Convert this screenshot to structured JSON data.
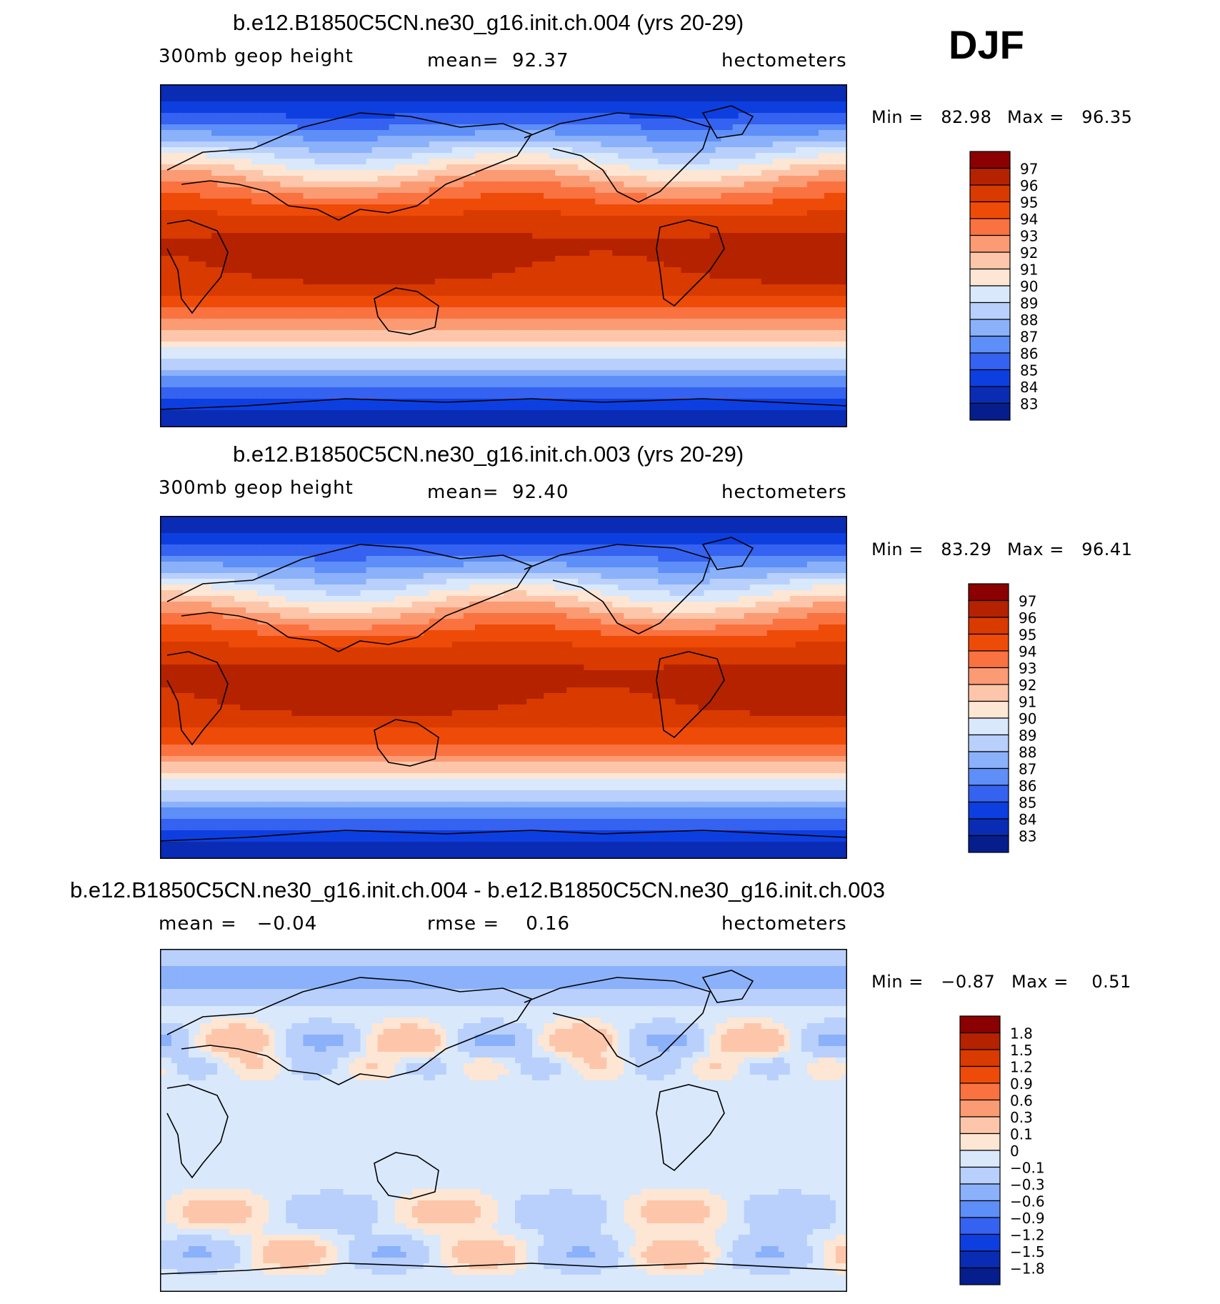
{
  "season": "DJF",
  "chart_data": [
    {
      "type": "heatmap",
      "title": "b.e12.B1850C5CN.ne30_g16.init.ch.004 (yrs 20-29)",
      "variable_label": "300mb geop height",
      "stat_text": "mean=  92.37",
      "units": "hectometers",
      "min_text": "Min =   82.98",
      "max_text": "Max =   96.35",
      "colorbar_levels": [
        "97",
        "96",
        "95",
        "94",
        "93",
        "92",
        "91",
        "90",
        "89",
        "88",
        "87",
        "86",
        "85",
        "84",
        "83"
      ],
      "field": {
        "kind": "abs",
        "mean": 92.37,
        "min": 82.98,
        "max": 96.35,
        "seed": 1
      }
    },
    {
      "type": "heatmap",
      "title": "b.e12.B1850C5CN.ne30_g16.init.ch.003 (yrs 20-29)",
      "variable_label": "300mb geop height",
      "stat_text": "mean=  92.40",
      "units": "hectometers",
      "min_text": "Min =   83.29",
      "max_text": "Max =   96.41",
      "colorbar_levels": [
        "97",
        "96",
        "95",
        "94",
        "93",
        "92",
        "91",
        "90",
        "89",
        "88",
        "87",
        "86",
        "85",
        "84",
        "83"
      ],
      "field": {
        "kind": "abs",
        "mean": 92.4,
        "min": 83.29,
        "max": 96.41,
        "seed": 2
      }
    },
    {
      "type": "heatmap",
      "title": "b.e12.B1850C5CN.ne30_g16.init.ch.004 - b.e12.B1850C5CN.ne30_g16.init.ch.003",
      "variable_label": "mean =   −0.04",
      "stat_text": "rmse =    0.16",
      "units": "hectometers",
      "min_text": "Min =   −0.87",
      "max_text": "Max =    0.51",
      "colorbar_levels": [
        "1.8",
        "1.5",
        "1.2",
        "0.9",
        "0.6",
        "0.3",
        "0.1",
        "0",
        "−0.1",
        "−0.3",
        "−0.6",
        "−0.9",
        "−1.2",
        "−1.5",
        "−1.8"
      ],
      "field": {
        "kind": "diff",
        "mean": -0.04,
        "min": -0.87,
        "max": 0.51,
        "seed": 3
      }
    }
  ],
  "palette": [
    "#8b0000",
    "#b42200",
    "#d93a00",
    "#ef4b08",
    "#fa7240",
    "#fb9b73",
    "#fdc6aa",
    "#fde6d4",
    "#d9e8fb",
    "#b8d0fb",
    "#8bb1fb",
    "#5e8ef7",
    "#3562f0",
    "#0d3fe0",
    "#0a2cb4",
    "#051e8c",
    "#000a78"
  ]
}
